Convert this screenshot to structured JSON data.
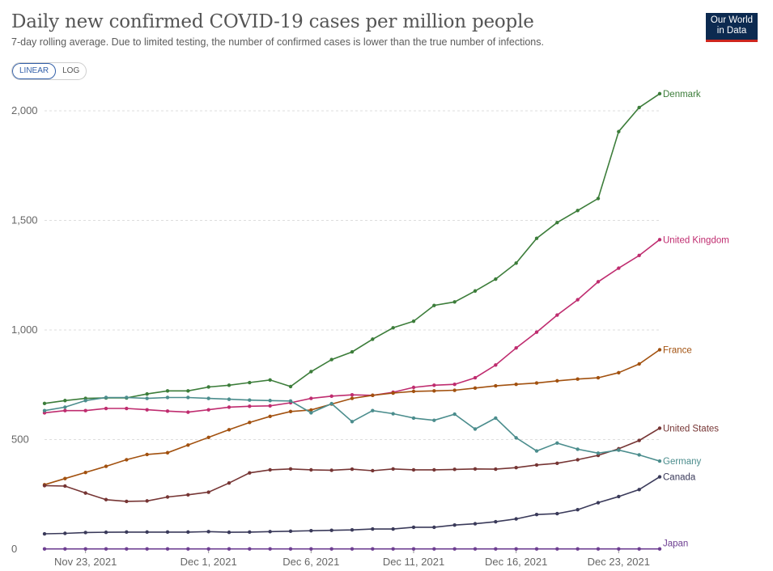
{
  "header": {
    "title": "Daily new confirmed COVID-19 cases per million people",
    "subtitle": "7-day rolling average. Due to limited testing, the number of confirmed cases is lower than the true number of infections.",
    "logo_line1": "Our World",
    "logo_line2": "in Data"
  },
  "controls": {
    "linear_label": "LINEAR",
    "log_label": "LOG",
    "selected": "LINEAR"
  },
  "chart_data": {
    "type": "line",
    "title": "Daily new confirmed COVID-19 cases per million people",
    "xlabel": "",
    "ylabel": "",
    "ylim": [
      0,
      2100
    ],
    "yticks": [
      0,
      500,
      1000,
      1500,
      2000
    ],
    "ytick_labels": [
      "0",
      "500",
      "1,000",
      "1,500",
      "2,000"
    ],
    "x_start": 0,
    "x_end": 30,
    "xticks": [
      2,
      8,
      13,
      18,
      23,
      28
    ],
    "xtick_labels": [
      "Nov 23, 2021",
      "Dec 1, 2021",
      "Dec 6, 2021",
      "Dec 11, 2021",
      "Dec 16, 2021",
      "Dec 23, 2021"
    ],
    "grid": true,
    "series": [
      {
        "name": "Denmark",
        "color": "#3c7d3a",
        "values": [
          665,
          678,
          688,
          690,
          690,
          708,
          722,
          722,
          740,
          748,
          760,
          772,
          742,
          810,
          865,
          900,
          958,
          1010,
          1040,
          1112,
          1128,
          1178,
          1232,
          1305,
          1418,
          1490,
          1545,
          1600,
          1905,
          2015,
          2078
        ]
      },
      {
        "name": "United Kingdom",
        "color": "#bf2c6f",
        "values": [
          622,
          632,
          632,
          642,
          642,
          636,
          630,
          625,
          636,
          648,
          652,
          654,
          668,
          688,
          698,
          704,
          702,
          716,
          738,
          748,
          752,
          782,
          840,
          918,
          990,
          1068,
          1138,
          1220,
          1282,
          1340,
          1412
        ]
      },
      {
        "name": "France",
        "color": "#a2510f",
        "values": [
          294,
          322,
          350,
          378,
          408,
          432,
          440,
          475,
          510,
          545,
          578,
          606,
          628,
          635,
          662,
          688,
          702,
          712,
          720,
          722,
          725,
          735,
          745,
          752,
          758,
          768,
          776,
          782,
          805,
          845,
          910
        ]
      },
      {
        "name": "United States",
        "color": "#763534",
        "values": [
          290,
          288,
          256,
          226,
          218,
          220,
          238,
          248,
          260,
          302,
          348,
          362,
          366,
          362,
          360,
          365,
          358,
          366,
          362,
          362,
          364,
          366,
          365,
          372,
          384,
          392,
          408,
          428,
          458,
          496,
          552
        ]
      },
      {
        "name": "Germany",
        "color": "#4b8d8d",
        "values": [
          632,
          648,
          678,
          692,
          692,
          688,
          692,
          692,
          688,
          684,
          680,
          678,
          676,
          622,
          664,
          582,
          632,
          618,
          598,
          588,
          616,
          548,
          598,
          508,
          448,
          484,
          456,
          438,
          452,
          430,
          402
        ]
      },
      {
        "name": "Canada",
        "color": "#3a3a5a",
        "values": [
          70,
          72,
          76,
          77,
          78,
          78,
          78,
          78,
          80,
          77,
          78,
          80,
          82,
          84,
          86,
          88,
          92,
          92,
          100,
          100,
          110,
          116,
          125,
          138,
          158,
          162,
          180,
          212,
          240,
          272,
          330
        ]
      },
      {
        "name": "Japan",
        "color": "#6d3e91",
        "values": [
          1,
          1,
          1,
          1,
          1,
          1,
          1,
          1,
          1,
          1,
          1,
          1,
          1,
          1,
          1,
          1,
          1,
          1,
          1,
          1,
          1,
          1,
          1,
          1,
          1,
          1,
          1,
          1,
          1,
          1,
          1
        ]
      }
    ]
  }
}
